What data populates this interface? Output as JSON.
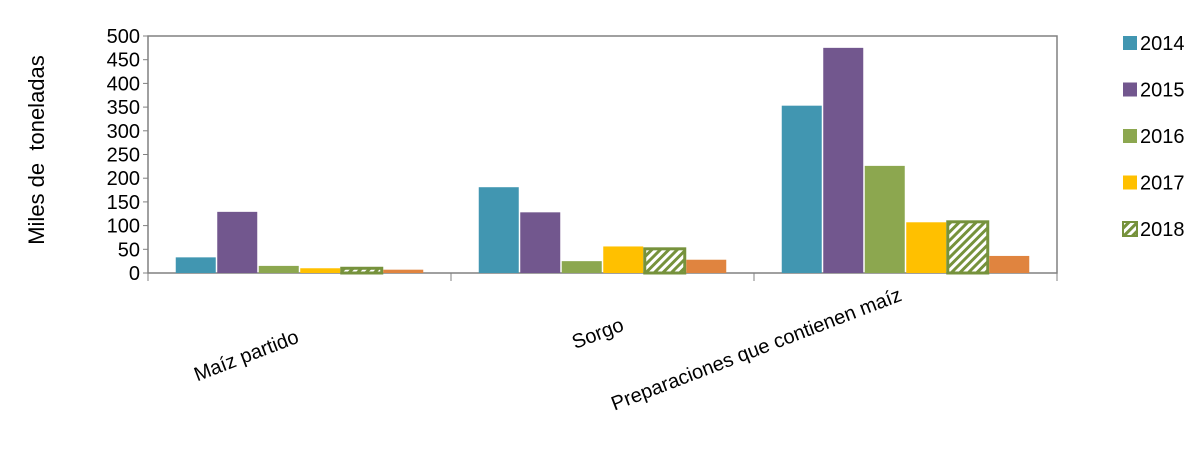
{
  "chart_data": {
    "type": "bar",
    "title": "",
    "xlabel": "",
    "ylabel": "Miles de  toneladas",
    "ylim": [
      0,
      500
    ],
    "yticks": [
      0,
      50,
      100,
      150,
      200,
      250,
      300,
      350,
      400,
      450,
      500
    ],
    "grid": false,
    "legend_position": "right",
    "categories": [
      "Maíz partido",
      "Sorgo",
      "Preparaciones que contienen maíz"
    ],
    "series": [
      {
        "name": "2014",
        "color": "#4196B1",
        "pattern": "solid",
        "values": [
          33,
          181,
          353
        ]
      },
      {
        "name": "2015",
        "color": "#72578E",
        "pattern": "solid",
        "values": [
          129,
          128,
          475
        ]
      },
      {
        "name": "2016",
        "color": "#8CA74F",
        "pattern": "solid",
        "values": [
          15,
          25,
          226
        ]
      },
      {
        "name": "2017",
        "color": "#FFC000",
        "pattern": "solid",
        "values": [
          10,
          56,
          107
        ]
      },
      {
        "name": "2018",
        "color": "#76923C",
        "pattern": "diagonal-hatch",
        "values": [
          10,
          51,
          108
        ]
      },
      {
        "name": "",
        "color": "#E0843F",
        "pattern": "solid",
        "values": [
          7,
          28,
          36
        ]
      }
    ]
  }
}
